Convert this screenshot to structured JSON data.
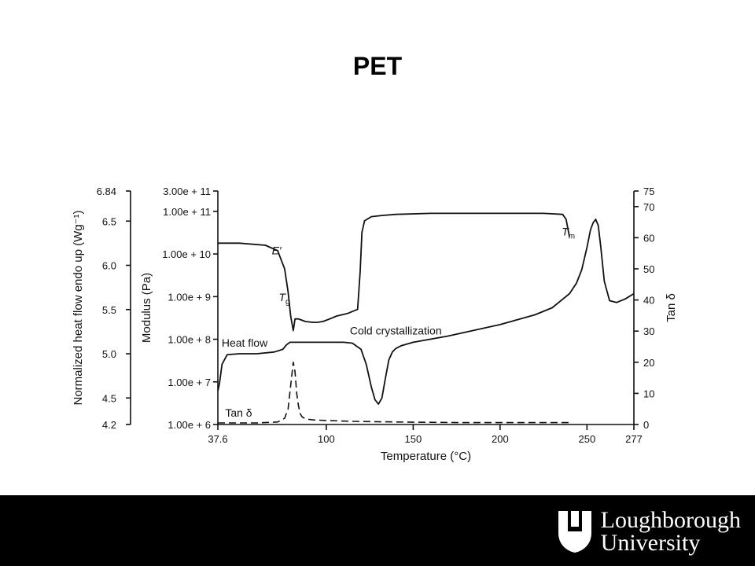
{
  "slide": {
    "title": "PET"
  },
  "chart_data": {
    "type": "line",
    "title": "PET",
    "xlabel": "Temperature (°C)",
    "x_ticks": [
      "37.6",
      "100",
      "150",
      "200",
      "250",
      "277"
    ],
    "x_tick_values": [
      37.6,
      100,
      150,
      200,
      250,
      277
    ],
    "xlim": [
      37.6,
      277
    ],
    "axes": {
      "left_outer": {
        "label": "Normalized heat flow endo up (Wg⁻¹)",
        "ticks": [
          "6.84",
          "6.5",
          "6.0",
          "5.5",
          "5.0",
          "4.5",
          "4.2"
        ],
        "tick_values": [
          6.84,
          6.5,
          6.0,
          5.5,
          5.0,
          4.5,
          4.2
        ],
        "range": [
          4.2,
          6.84
        ]
      },
      "left_inner": {
        "label": "Modulus (Pa)",
        "scale": "log",
        "ticks": [
          "3.00e + 11",
          "1.00e + 11",
          "1.00e + 10",
          "1.00e + 9",
          "1.00e + 8",
          "1.00e + 7",
          "1.00e + 6"
        ],
        "tick_values": [
          300000000000.0,
          100000000000.0,
          10000000000.0,
          1000000000.0,
          100000000.0,
          10000000.0,
          1000000.0
        ],
        "range": [
          1000000.0,
          300000000000.0
        ]
      },
      "right": {
        "label": "Tan δ",
        "ticks": [
          "75",
          "70",
          "60",
          "50",
          "40",
          "30",
          "20",
          "10",
          "0"
        ],
        "tick_values": [
          75,
          70,
          60,
          50,
          40,
          30,
          20,
          10,
          0
        ],
        "range": [
          0,
          75
        ]
      }
    },
    "series": [
      {
        "name": "E′",
        "axis": "left_inner",
        "style": "solid",
        "x": [
          37.6,
          50,
          65,
          72,
          76,
          78,
          79.5,
          81,
          82,
          84,
          88,
          92,
          95,
          98,
          102,
          106,
          112,
          118,
          119.5,
          120.5,
          122,
          126,
          132,
          140,
          160,
          200,
          225,
          236,
          238,
          239,
          240
        ],
        "y": [
          18000000000.0,
          18000000000.0,
          16000000000.0,
          12000000000.0,
          4500000000.0,
          1300000000.0,
          350000000.0,
          160000000.0,
          300000000.0,
          300000000.0,
          260000000.0,
          250000000.0,
          250000000.0,
          260000000.0,
          300000000.0,
          350000000.0,
          400000000.0,
          500000000.0,
          4000000000.0,
          32000000000.0,
          60000000000.0,
          75000000000.0,
          80000000000.0,
          85000000000.0,
          90000000000.0,
          90000000000.0,
          90000000000.0,
          85000000000.0,
          65000000000.0,
          40000000000.0,
          25000000000.0
        ]
      },
      {
        "name": "Heat flow",
        "axis": "left_outer",
        "style": "solid",
        "x": [
          37.6,
          38.5,
          40,
          43,
          50,
          60,
          70,
          75,
          77,
          79,
          82,
          90,
          100,
          110,
          115,
          120,
          123,
          126,
          128,
          130,
          132,
          134,
          136,
          138,
          140,
          143,
          150,
          170,
          200,
          220,
          230,
          240,
          244,
          247,
          250,
          252,
          253.5,
          255,
          256.5,
          258,
          260,
          263,
          267,
          272,
          277
        ],
        "y": [
          4.58,
          4.66,
          4.88,
          4.99,
          5.0,
          5.0,
          5.02,
          5.05,
          5.1,
          5.13,
          5.13,
          5.13,
          5.13,
          5.13,
          5.12,
          5.05,
          4.88,
          4.62,
          4.48,
          4.43,
          4.5,
          4.72,
          4.93,
          5.02,
          5.06,
          5.09,
          5.13,
          5.2,
          5.33,
          5.44,
          5.52,
          5.68,
          5.8,
          5.95,
          6.2,
          6.4,
          6.48,
          6.52,
          6.45,
          6.2,
          5.82,
          5.6,
          5.58,
          5.62,
          5.68
        ]
      },
      {
        "name": "Tan δ",
        "axis": "right",
        "style": "dashed",
        "x": [
          37.6,
          60,
          72,
          76,
          78,
          79,
          80,
          81,
          82,
          83,
          84,
          85,
          86,
          88,
          92,
          100,
          115,
          140,
          180,
          220,
          240
        ],
        "y": [
          0.5,
          0.5,
          0.8,
          2.0,
          5.0,
          10.0,
          15.0,
          20.0,
          17.0,
          10.0,
          6.0,
          3.5,
          2.5,
          1.8,
          1.5,
          1.3,
          1.0,
          0.8,
          0.6,
          0.6,
          0.6
        ]
      }
    ],
    "annotations": [
      {
        "text": "E′",
        "x": 75,
        "series": "E′"
      },
      {
        "text": "T",
        "sub": "g",
        "x": 79,
        "series": "E′"
      },
      {
        "text": "T",
        "sub": "m",
        "x": 240,
        "series": "E′"
      },
      {
        "text": "Heat flow",
        "x": 53,
        "series": "Heat flow"
      },
      {
        "text": "Cold crystallization",
        "x": 140,
        "series": "Heat flow"
      },
      {
        "text": "Tan δ",
        "x": 55,
        "series": "Tan δ"
      }
    ],
    "grid": false,
    "legend": "none"
  },
  "footer": {
    "background": "#000000",
    "logo_line1": "Loughborough",
    "logo_line2": "University"
  }
}
